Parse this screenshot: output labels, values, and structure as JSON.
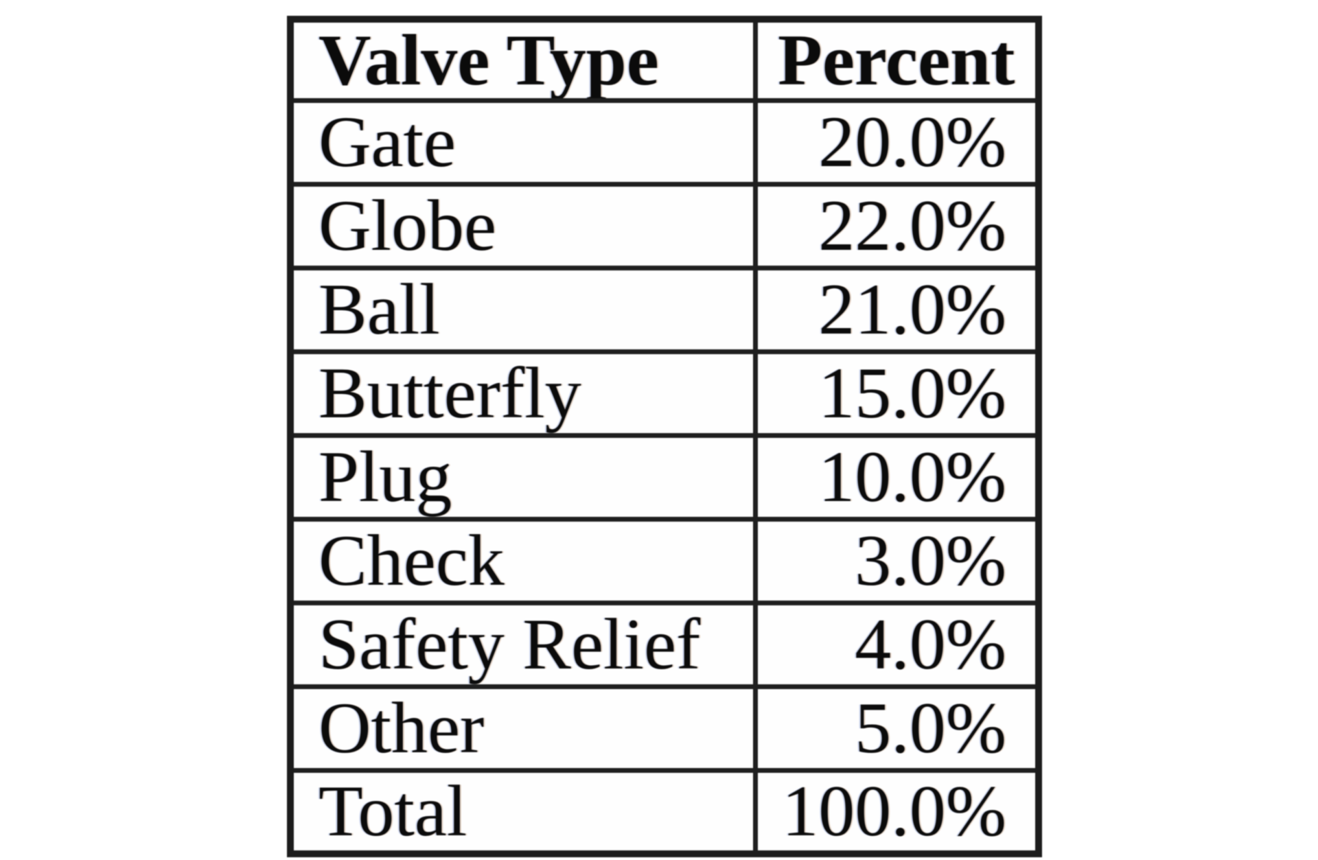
{
  "colors": {
    "background": "#ffffff",
    "text": "#0b0b0b",
    "border": "#1f1f1f"
  },
  "table": {
    "header": {
      "valve_type": "Valve Type",
      "percent": "Percent"
    },
    "rows": [
      {
        "type": "Gate",
        "percent": "20.0%"
      },
      {
        "type": "Globe",
        "percent": "22.0%"
      },
      {
        "type": "Ball",
        "percent": "21.0%"
      },
      {
        "type": "Butterfly",
        "percent": "15.0%"
      },
      {
        "type": "Plug",
        "percent": "10.0%"
      },
      {
        "type": "Check",
        "percent": "3.0%"
      },
      {
        "type": "Safety Relief",
        "percent": "4.0%"
      },
      {
        "type": "Other",
        "percent": "5.0%"
      },
      {
        "type": "Total",
        "percent": "100.0%"
      }
    ]
  }
}
